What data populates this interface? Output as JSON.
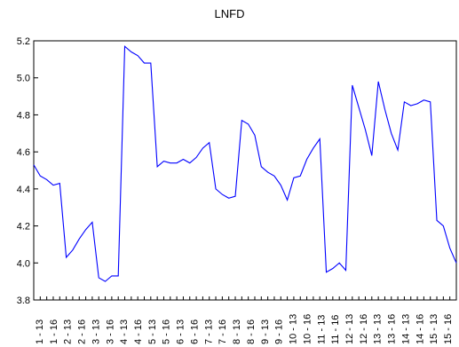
{
  "chart_data": {
    "type": "line",
    "title": "LNFD",
    "xlabel": "",
    "ylabel": "",
    "ylim": [
      3.8,
      5.2
    ],
    "yticks": [
      3.8,
      4.0,
      4.2,
      4.4,
      4.6,
      4.8,
      5.0,
      5.2
    ],
    "ytick_labels": [
      "3.8",
      "4.0",
      "4.2",
      "4.4",
      "4.6",
      "4.8",
      "5.0",
      "5.2"
    ],
    "x_tick_labels": [
      "1 - 13",
      "1 - 16",
      "2 - 13",
      "2 - 16",
      "3 - 13",
      "3 - 16",
      "4 - 13",
      "4 - 16",
      "5 - 13",
      "5 - 16",
      "6 - 13",
      "6 - 16",
      "7 - 13",
      "7 - 16",
      "8 - 13",
      "8 - 16",
      "9 - 13",
      "9 - 16",
      "10 - 13",
      "10 - 16",
      "11 - 13",
      "11 - 16",
      "12 - 13",
      "12 - 16",
      "13 - 13",
      "13 - 16",
      "14 - 13",
      "14 - 16",
      "15 - 13",
      "15 - 16"
    ],
    "line_color": "#0000ff",
    "grid": false,
    "series": [
      {
        "values": [
          4.53,
          4.47,
          4.45,
          4.42,
          4.43,
          4.03,
          4.07,
          4.13,
          4.18,
          4.22,
          3.92,
          3.9,
          3.93,
          3.93,
          5.17,
          5.14,
          5.12,
          5.08,
          5.08,
          4.52,
          4.55,
          4.54,
          4.54,
          4.56,
          4.54,
          4.57,
          4.62,
          4.65,
          4.4,
          4.37,
          4.35,
          4.36,
          4.77,
          4.75,
          4.69,
          4.52,
          4.49,
          4.47,
          4.42,
          4.34,
          4.46,
          4.47,
          4.56,
          4.62,
          4.67,
          3.95,
          3.97,
          4.0,
          3.96,
          4.96,
          4.84,
          4.72,
          4.58,
          4.98,
          4.83,
          4.7,
          4.61,
          4.87,
          4.85,
          4.86,
          4.88,
          4.87,
          4.23,
          4.2,
          4.08,
          4.0
        ]
      }
    ]
  }
}
